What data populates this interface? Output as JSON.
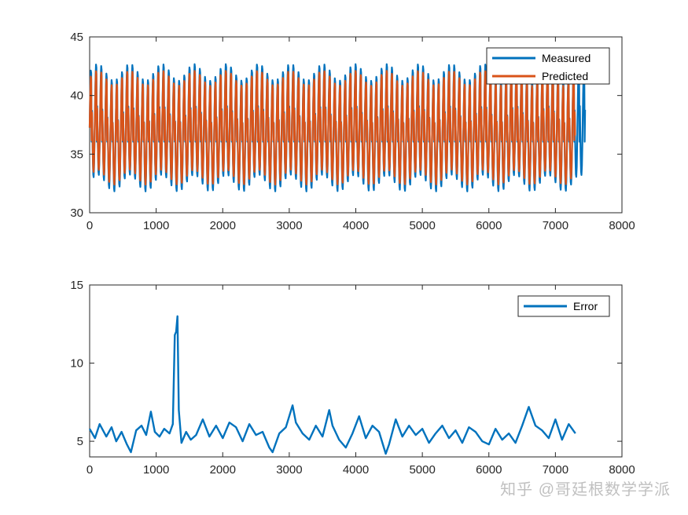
{
  "colors": {
    "measured": "#0072BD",
    "predicted": "#D95319",
    "error": "#0072BD",
    "axes": "#262626"
  },
  "watermark": "知乎 @哥廷根数学学派",
  "chart_data": [
    {
      "type": "line",
      "title": "",
      "xlabel": "",
      "ylabel": "",
      "xlim": [
        0,
        8000
      ],
      "ylim": [
        30,
        45
      ],
      "xticks": [
        0,
        1000,
        2000,
        3000,
        4000,
        5000,
        6000,
        7000,
        8000
      ],
      "yticks": [
        30,
        35,
        40,
        45
      ],
      "legend_position": "top-right",
      "grid": false,
      "series": [
        {
          "name": "Measured",
          "color": "#0072BD",
          "x_range": [
            0,
            7450
          ],
          "pattern": "periodic oscillation, ~95 cycles, period ~78",
          "approx_max": 42,
          "approx_min": 32.5
        },
        {
          "name": "Predicted",
          "color": "#D95319",
          "x_range": [
            0,
            7300
          ],
          "pattern": "periodic oscillation tracking Measured, slightly smaller amplitude",
          "approx_max": 41.5,
          "approx_min": 33
        }
      ]
    },
    {
      "type": "line",
      "title": "",
      "xlabel": "",
      "ylabel": "",
      "xlim": [
        0,
        8000
      ],
      "ylim": [
        4,
        15
      ],
      "xticks": [
        0,
        1000,
        2000,
        3000,
        4000,
        5000,
        6000,
        7000,
        8000
      ],
      "yticks": [
        5,
        10,
        15
      ],
      "legend_position": "top-right",
      "grid": false,
      "series": [
        {
          "name": "Error",
          "color": "#0072BD",
          "x": [
            0,
            80,
            150,
            250,
            330,
            400,
            480,
            560,
            620,
            700,
            780,
            850,
            920,
            980,
            1050,
            1120,
            1200,
            1250,
            1280,
            1300,
            1320,
            1340,
            1380,
            1450,
            1520,
            1600,
            1700,
            1800,
            1900,
            2000,
            2100,
            2200,
            2300,
            2400,
            2500,
            2600,
            2700,
            2750,
            2850,
            2950,
            3050,
            3100,
            3200,
            3300,
            3400,
            3500,
            3600,
            3650,
            3750,
            3850,
            3950,
            4050,
            4150,
            4250,
            4350,
            4450,
            4500,
            4600,
            4700,
            4800,
            4900,
            5000,
            5100,
            5200,
            5300,
            5400,
            5500,
            5600,
            5700,
            5800,
            5900,
            6000,
            6100,
            6200,
            6300,
            6400,
            6500,
            6600,
            6700,
            6800,
            6900,
            7000,
            7100,
            7200,
            7300
          ],
          "y": [
            5.8,
            5.2,
            6.1,
            5.3,
            5.9,
            5.0,
            5.6,
            4.8,
            4.3,
            5.7,
            6.0,
            5.4,
            6.9,
            5.6,
            5.3,
            5.8,
            5.5,
            6.1,
            11.8,
            12.0,
            13.0,
            7.0,
            4.9,
            5.6,
            5.1,
            5.4,
            6.4,
            5.3,
            6.0,
            5.2,
            6.2,
            5.9,
            5.0,
            6.1,
            5.4,
            5.6,
            4.6,
            4.3,
            5.5,
            5.9,
            7.3,
            6.2,
            5.5,
            5.1,
            6.0,
            5.3,
            7.0,
            6.0,
            5.1,
            4.6,
            5.5,
            6.6,
            5.2,
            6.0,
            5.6,
            4.2,
            4.8,
            6.4,
            5.3,
            6.0,
            5.4,
            5.8,
            4.9,
            5.5,
            6.0,
            5.2,
            5.7,
            4.9,
            5.9,
            5.6,
            5.0,
            4.8,
            5.8,
            5.1,
            5.5,
            4.9,
            6.0,
            7.2,
            6.0,
            5.7,
            5.2,
            6.4,
            5.1,
            6.1,
            5.5
          ]
        }
      ]
    }
  ]
}
